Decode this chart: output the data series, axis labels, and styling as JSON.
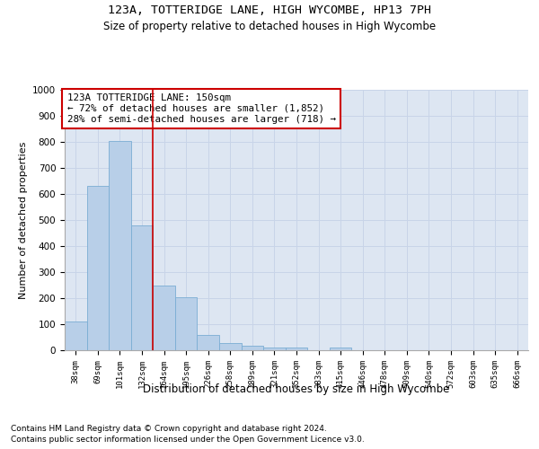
{
  "title1": "123A, TOTTERIDGE LANE, HIGH WYCOMBE, HP13 7PH",
  "title2": "Size of property relative to detached houses in High Wycombe",
  "xlabel": "Distribution of detached houses by size in High Wycombe",
  "ylabel": "Number of detached properties",
  "footnote1": "Contains HM Land Registry data © Crown copyright and database right 2024.",
  "footnote2": "Contains public sector information licensed under the Open Government Licence v3.0.",
  "bin_labels": [
    "38sqm",
    "69sqm",
    "101sqm",
    "132sqm",
    "164sqm",
    "195sqm",
    "226sqm",
    "258sqm",
    "289sqm",
    "321sqm",
    "352sqm",
    "383sqm",
    "415sqm",
    "446sqm",
    "478sqm",
    "509sqm",
    "540sqm",
    "572sqm",
    "603sqm",
    "635sqm",
    "666sqm"
  ],
  "bin_values": [
    110,
    630,
    805,
    480,
    250,
    205,
    60,
    28,
    18,
    12,
    10,
    0,
    10,
    0,
    0,
    0,
    0,
    0,
    0,
    0,
    0
  ],
  "bar_color": "#b8cfe8",
  "bar_edge_color": "#7aadd4",
  "property_line_x": 3.5,
  "property_line_color": "#cc0000",
  "annotation_text": "123A TOTTERIDGE LANE: 150sqm\n← 72% of detached houses are smaller (1,852)\n28% of semi-detached houses are larger (718) →",
  "annotation_box_color": "#cc0000",
  "ylim": [
    0,
    1000
  ],
  "yticks": [
    0,
    100,
    200,
    300,
    400,
    500,
    600,
    700,
    800,
    900,
    1000
  ],
  "grid_color": "#c8d4e8",
  "background_color": "#dde6f2"
}
